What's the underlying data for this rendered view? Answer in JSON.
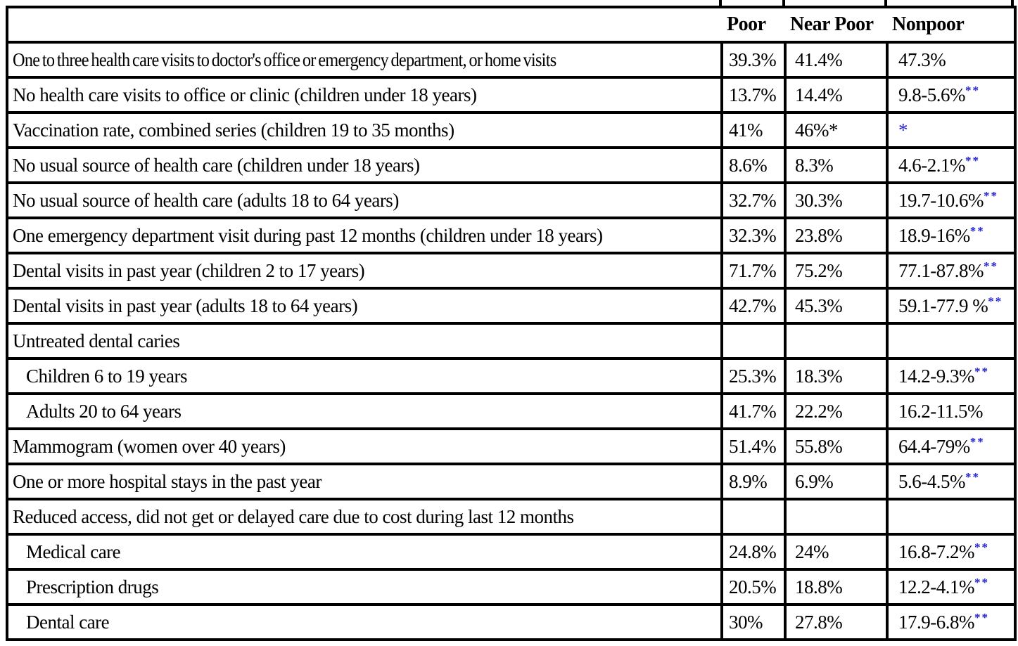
{
  "colors": {
    "significance_marker_blue": "#2424d2",
    "border": "#000000",
    "text": "#000000",
    "background": "#ffffff"
  },
  "table": {
    "columns": [
      "",
      "Poor",
      "Near Poor",
      "Nonpoor"
    ],
    "rows": [
      {
        "label": "One to three health care visits to doctor's office or emergency department, or home visits",
        "indent": false,
        "condensed": true,
        "cells": [
          {
            "text": "39.3%"
          },
          {
            "text": "41.4%"
          },
          {
            "text": "47.3%"
          }
        ]
      },
      {
        "label": "No health care visits to office or clinic (children under 18 years)",
        "indent": false,
        "cells": [
          {
            "text": "13.7%"
          },
          {
            "text": "14.4%"
          },
          {
            "text": "9.8-5.6%",
            "sup": "**"
          }
        ]
      },
      {
        "label": "Vaccination rate, combined series (children 19 to 35 months)",
        "indent": false,
        "cells": [
          {
            "text": "41%"
          },
          {
            "text": "46%*"
          },
          {
            "text": "*",
            "blue": true
          }
        ]
      },
      {
        "label": "No usual source of health care (children under 18 years)",
        "indent": false,
        "cells": [
          {
            "text": "8.6%"
          },
          {
            "text": "8.3%"
          },
          {
            "text": "4.6-2.1%",
            "sup": "**"
          }
        ]
      },
      {
        "label": "No usual source of health care (adults 18 to 64 years)",
        "indent": false,
        "cells": [
          {
            "text": "32.7%"
          },
          {
            "text": "30.3%"
          },
          {
            "text": "19.7-10.6%",
            "sup": "**"
          }
        ]
      },
      {
        "label": "One emergency department visit during past 12 months (children under 18 years)",
        "indent": false,
        "cells": [
          {
            "text": "32.3%"
          },
          {
            "text": "23.8%"
          },
          {
            "text": "18.9-16%",
            "sup": "**"
          }
        ]
      },
      {
        "label": "Dental visits in past year (children 2 to 17 years)",
        "indent": false,
        "cells": [
          {
            "text": "71.7%"
          },
          {
            "text": "75.2%"
          },
          {
            "text": "77.1-87.8%",
            "sup": "**"
          }
        ]
      },
      {
        "label": "Dental visits in past year (adults 18 to 64 years)",
        "indent": false,
        "cells": [
          {
            "text": "42.7%"
          },
          {
            "text": "45.3%"
          },
          {
            "text": "59.1-77.9 %",
            "sup": "**"
          }
        ]
      },
      {
        "label": "Untreated dental caries",
        "indent": false,
        "cells": [
          {
            "text": ""
          },
          {
            "text": ""
          },
          {
            "text": ""
          }
        ]
      },
      {
        "label": "Children 6 to 19 years",
        "indent": true,
        "cells": [
          {
            "text": "25.3%"
          },
          {
            "text": "18.3%"
          },
          {
            "text": "14.2-9.3%",
            "sup": "**"
          }
        ]
      },
      {
        "label": "Adults 20 to 64 years",
        "indent": true,
        "cells": [
          {
            "text": "41.7%"
          },
          {
            "text": "22.2%"
          },
          {
            "text": "16.2-11.5%"
          }
        ]
      },
      {
        "label": "Mammogram (women over 40 years)",
        "indent": false,
        "cells": [
          {
            "text": "51.4%"
          },
          {
            "text": "55.8%"
          },
          {
            "text": "64.4-79%",
            "sup": "**"
          }
        ]
      },
      {
        "label": "One or more hospital stays in the past year",
        "indent": false,
        "cells": [
          {
            "text": "8.9%"
          },
          {
            "text": "6.9%"
          },
          {
            "text": "5.6-4.5%",
            "sup": "**"
          }
        ]
      },
      {
        "label": "Reduced access, did not get or delayed care due to cost during last 12 months",
        "indent": false,
        "cells": [
          {
            "text": ""
          },
          {
            "text": ""
          },
          {
            "text": ""
          }
        ]
      },
      {
        "label": "Medical care",
        "indent": true,
        "cells": [
          {
            "text": "24.8%"
          },
          {
            "text": "24%"
          },
          {
            "text": "16.8-7.2%",
            "sup": "**"
          }
        ]
      },
      {
        "label": "Prescription drugs",
        "indent": true,
        "cells": [
          {
            "text": "20.5%"
          },
          {
            "text": "18.8%"
          },
          {
            "text": "12.2-4.1%",
            "sup": "**"
          }
        ]
      },
      {
        "label": "Dental care",
        "indent": true,
        "cells": [
          {
            "text": "30%"
          },
          {
            "text": "27.8%"
          },
          {
            "text": "17.9-6.8%",
            "sup": "**"
          }
        ]
      }
    ]
  }
}
